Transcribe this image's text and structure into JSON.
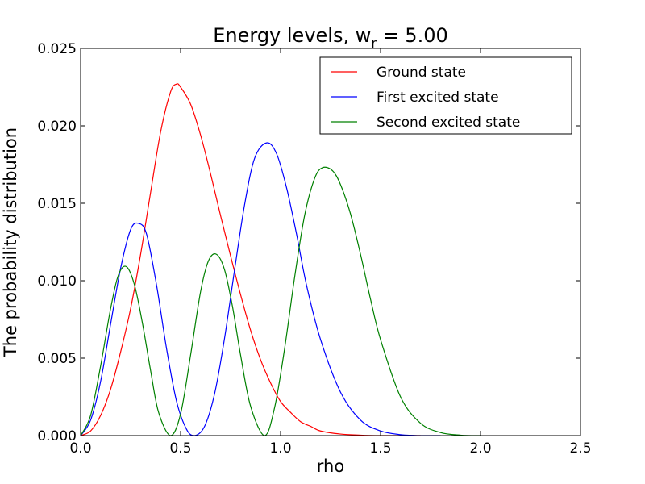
{
  "chart_data": {
    "type": "line",
    "title": "Energy levels, w",
    "title_subscript": "r",
    "title_suffix": " = 5.00",
    "xlabel": "rho",
    "ylabel": "The probability distribution",
    "xlim": [
      0.0,
      2.5
    ],
    "ylim": [
      0.0,
      0.025
    ],
    "x_ticks": [
      "0.0",
      "0.5",
      "1.0",
      "1.5",
      "2.0",
      "2.5"
    ],
    "y_ticks": [
      "0.000",
      "0.005",
      "0.010",
      "0.015",
      "0.020",
      "0.025"
    ],
    "grid": false,
    "legend_position": "top-right",
    "series": [
      {
        "name": "Ground state",
        "color": "#ff0000",
        "x": [
          0.0,
          0.05,
          0.1,
          0.15,
          0.2,
          0.25,
          0.3,
          0.35,
          0.4,
          0.45,
          0.48,
          0.5,
          0.55,
          0.6,
          0.65,
          0.7,
          0.75,
          0.8,
          0.85,
          0.9,
          0.95,
          1.0,
          1.05,
          1.1,
          1.15,
          1.2,
          1.3,
          1.4,
          1.5,
          1.6,
          1.7
        ],
        "y": [
          0.0,
          0.0003,
          0.0013,
          0.003,
          0.0054,
          0.0082,
          0.0117,
          0.0157,
          0.0196,
          0.0222,
          0.0227,
          0.0225,
          0.0214,
          0.0194,
          0.0169,
          0.0142,
          0.0116,
          0.0091,
          0.0068,
          0.0049,
          0.0034,
          0.0022,
          0.0015,
          0.0009,
          0.0006,
          0.0003,
          0.0001,
          3e-05,
          0.0,
          0.0,
          0.0
        ]
      },
      {
        "name": "First excited state",
        "color": "#0000ff",
        "x": [
          0.0,
          0.05,
          0.1,
          0.15,
          0.2,
          0.25,
          0.29,
          0.33,
          0.38,
          0.43,
          0.48,
          0.53,
          0.57,
          0.62,
          0.67,
          0.72,
          0.77,
          0.82,
          0.87,
          0.93,
          0.98,
          1.03,
          1.08,
          1.13,
          1.2,
          1.3,
          1.4,
          1.5,
          1.6,
          1.7,
          1.8
        ],
        "y": [
          0.0,
          0.001,
          0.0035,
          0.0072,
          0.0108,
          0.0133,
          0.0137,
          0.013,
          0.0097,
          0.0056,
          0.0022,
          0.0004,
          0.0,
          0.0006,
          0.0027,
          0.0063,
          0.0107,
          0.0149,
          0.0179,
          0.0189,
          0.0182,
          0.016,
          0.013,
          0.0097,
          0.0062,
          0.0028,
          0.001,
          0.0003,
          6e-05,
          0.0,
          0.0
        ]
      },
      {
        "name": "Second excited state",
        "color": "#008000",
        "x": [
          0.0,
          0.05,
          0.1,
          0.15,
          0.19,
          0.23,
          0.27,
          0.31,
          0.35,
          0.39,
          0.45,
          0.5,
          0.55,
          0.6,
          0.64,
          0.68,
          0.72,
          0.76,
          0.8,
          0.85,
          0.92,
          0.97,
          1.02,
          1.07,
          1.12,
          1.17,
          1.21,
          1.26,
          1.3,
          1.35,
          1.4,
          1.45,
          1.5,
          1.6,
          1.7,
          1.8,
          1.9,
          2.0
        ],
        "y": [
          0.0,
          0.0013,
          0.0045,
          0.0082,
          0.0104,
          0.0109,
          0.0097,
          0.0072,
          0.0042,
          0.0015,
          0.0,
          0.0014,
          0.0052,
          0.0093,
          0.0113,
          0.0117,
          0.0107,
          0.0083,
          0.0052,
          0.0019,
          0.0,
          0.0018,
          0.0056,
          0.0102,
          0.0142,
          0.0166,
          0.0173,
          0.0171,
          0.0162,
          0.0143,
          0.0117,
          0.0088,
          0.0062,
          0.0025,
          0.0008,
          0.0002,
          3e-05,
          0.0
        ]
      }
    ]
  }
}
